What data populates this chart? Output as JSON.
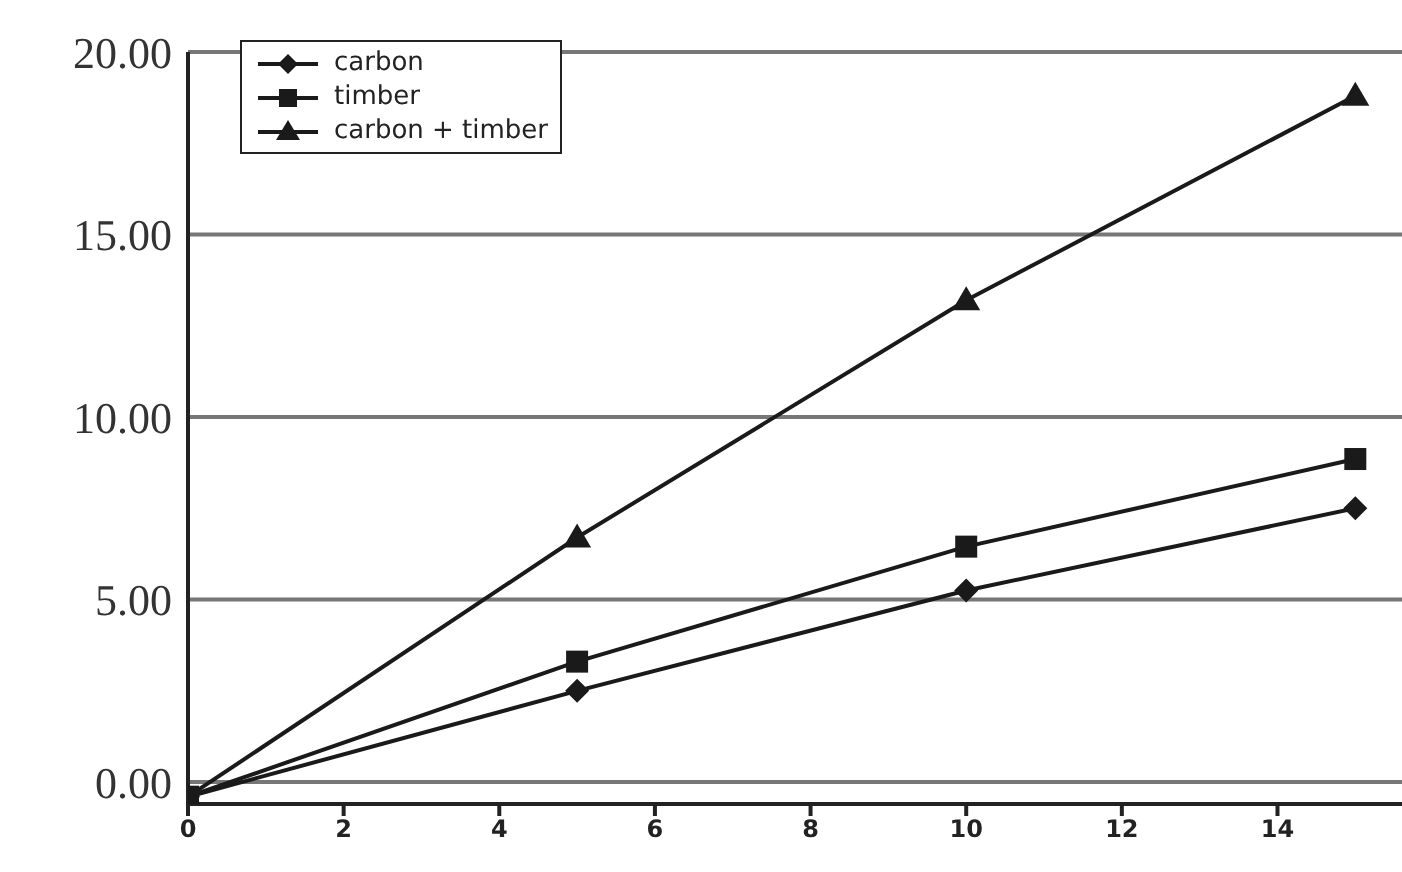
{
  "chart_data": {
    "type": "line",
    "x": [
      0,
      5,
      10,
      15
    ],
    "series": [
      {
        "name": "carbon",
        "color": "#1a1a1a",
        "marker": "diamond",
        "values": [
          -0.4,
          2.5,
          5.25,
          7.5
        ]
      },
      {
        "name": "timber",
        "color": "#1a1a1a",
        "marker": "square",
        "values": [
          -0.4,
          3.3,
          6.45,
          8.85
        ]
      },
      {
        "name": "carbon + timber",
        "color": "#1a1a1a",
        "marker": "triangle",
        "values": [
          -0.4,
          6.7,
          13.2,
          18.8
        ]
      }
    ],
    "xlim": [
      0,
      15.6
    ],
    "xticks": [
      0,
      2,
      4,
      6,
      8,
      10,
      12,
      14
    ],
    "ylim": [
      -0.6,
      20
    ],
    "yticks": [
      {
        "value": 0,
        "label": "0.00"
      },
      {
        "value": 5,
        "label": "5.00"
      },
      {
        "value": 10,
        "label": "10.00"
      },
      {
        "value": 15,
        "label": "15.00"
      },
      {
        "value": 20,
        "label": "20.00"
      }
    ],
    "grid": "y",
    "legend": "top left",
    "line_style": "solid"
  }
}
